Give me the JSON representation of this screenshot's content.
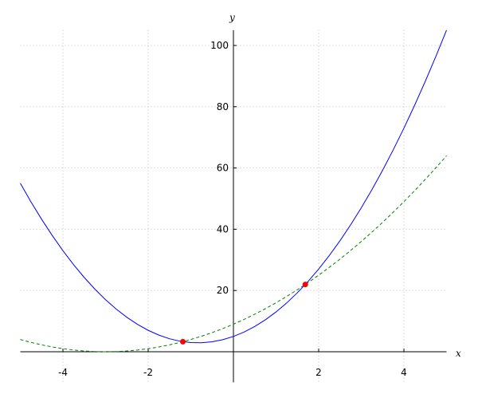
{
  "chart_data": {
    "type": "line",
    "x_label": "x",
    "y_label": "y",
    "xlim": [
      -5,
      5
    ],
    "ylim": [
      -10,
      105
    ],
    "xticks": [
      -4,
      -2,
      2,
      4
    ],
    "yticks": [
      20,
      40,
      60,
      80,
      100
    ],
    "grid": true,
    "series": [
      {
        "color": "#0000ff",
        "style": "solid",
        "x": [
          -5,
          -4.75,
          -4.5,
          -4.25,
          -4,
          -3.75,
          -3.5,
          -3.25,
          -3,
          -2.75,
          -2.5,
          -2.25,
          -2,
          -1.75,
          -1.5,
          -1.25,
          -1,
          -0.75,
          -0.5,
          -0.25,
          0,
          0.25,
          0.5,
          0.75,
          1,
          1.25,
          1.5,
          1.75,
          2,
          2.25,
          2.5,
          2.75,
          3,
          3.25,
          3.5,
          3.75,
          4,
          4.25,
          4.5,
          4.75,
          5
        ],
        "values": [
          55,
          48.9375,
          43.25,
          37.9375,
          33,
          28.4375,
          24.25,
          20.4375,
          17,
          13.9375,
          11.25,
          8.9375,
          7,
          5.4375,
          4.25,
          3.4375,
          3,
          2.9375,
          3.25,
          3.9375,
          5,
          6.4375,
          8.25,
          10.4375,
          13,
          15.9375,
          19.25,
          22.9375,
          27,
          31.4375,
          36.25,
          41.4375,
          47,
          52.9375,
          59.25,
          65.9375,
          73,
          80.4375,
          88.25,
          96.4375,
          105
        ]
      },
      {
        "color": "#008000",
        "style": "dashed",
        "x": [
          -5,
          -4.75,
          -4.5,
          -4.25,
          -4,
          -3.75,
          -3.5,
          -3.25,
          -3,
          -2.75,
          -2.5,
          -2.25,
          -2,
          -1.75,
          -1.5,
          -1.25,
          -1,
          -0.75,
          -0.5,
          -0.25,
          0,
          0.25,
          0.5,
          0.75,
          1,
          1.25,
          1.5,
          1.75,
          2,
          2.25,
          2.5,
          2.75,
          3,
          3.25,
          3.5,
          3.75,
          4,
          4.25,
          4.5,
          4.75,
          5
        ],
        "values": [
          4,
          3.0625,
          2.25,
          1.5625,
          1,
          0.5625,
          0.25,
          0.0625,
          0,
          0.0625,
          0.25,
          0.5625,
          1,
          1.5625,
          2.25,
          3.0625,
          4,
          5.0625,
          6.25,
          7.5625,
          9,
          10.5625,
          12.25,
          14.0625,
          16,
          18.0625,
          20.25,
          22.5625,
          25,
          27.5625,
          30.25,
          33.0625,
          36,
          39.0625,
          42.25,
          45.5625,
          49,
          52.5625,
          56.25,
          60.0625,
          64
        ]
      },
      {
        "color": "#ff0000",
        "style": "points",
        "x": [
          -1.186,
          1.686
        ],
        "values": [
          3.29,
          21.96
        ]
      }
    ]
  }
}
